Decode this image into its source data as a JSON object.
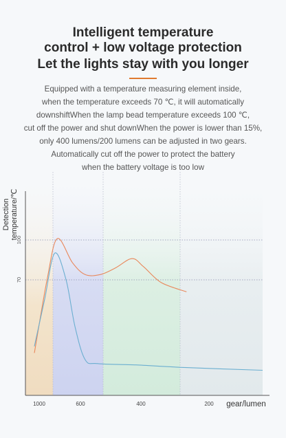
{
  "heading": {
    "line1": "Intelligent temperature",
    "line2": "control + low voltage protection",
    "line3": "Let the lights stay with you longer"
  },
  "description": [
    "Equipped with a temperature measuring element inside,",
    "when the temperature exceeds 70 ℃, it will automatically",
    "downshiftWhen the lamp bead temperature exceeds 100 ℃,",
    "cut off the power and shut downWhen the power is lower than 15%,",
    "only 400 lumens/200 lumens can be adjusted in two gears.",
    "Automatically cut off the power to protect the battery",
    "when the battery voltage is too low"
  ],
  "colors": {
    "accent": "#e07a2e",
    "orange_line": "#e9875a",
    "blue_line": "#6aaed0",
    "zone_orange": "#f3e4cc",
    "zone_blue": "#d7dcf3",
    "zone_green": "#dcefe3",
    "zone_gray": "#e8eef0"
  },
  "chart_data": {
    "type": "line",
    "ylabel_line1": "Detection",
    "ylabel_line2": "temperature/℃",
    "xlabel": "gear/lumen",
    "x_ticks": [
      "1000",
      "600",
      "400",
      "200"
    ],
    "y_ticks": [
      "100",
      "70"
    ],
    "reference_lines": [
      100,
      70
    ],
    "series": [
      {
        "color": "orange",
        "points": [
          [
            0,
            15
          ],
          [
            0.5,
            70
          ],
          [
            0.9,
            101
          ],
          [
            1.5,
            83
          ],
          [
            2.0,
            74
          ],
          [
            2.6,
            74
          ],
          [
            3.2,
            79
          ],
          [
            3.85,
            86
          ],
          [
            4.3,
            80
          ],
          [
            5.0,
            68
          ],
          [
            6.0,
            61
          ]
        ]
      },
      {
        "color": "blue",
        "points": [
          [
            0,
            20
          ],
          [
            0.4,
            55
          ],
          [
            0.8,
            90
          ],
          [
            1.25,
            70
          ],
          [
            1.6,
            35
          ],
          [
            2.0,
            10
          ],
          [
            2.5,
            7
          ],
          [
            4.0,
            6
          ],
          [
            6.0,
            4
          ],
          [
            9.0,
            2
          ]
        ]
      }
    ]
  }
}
